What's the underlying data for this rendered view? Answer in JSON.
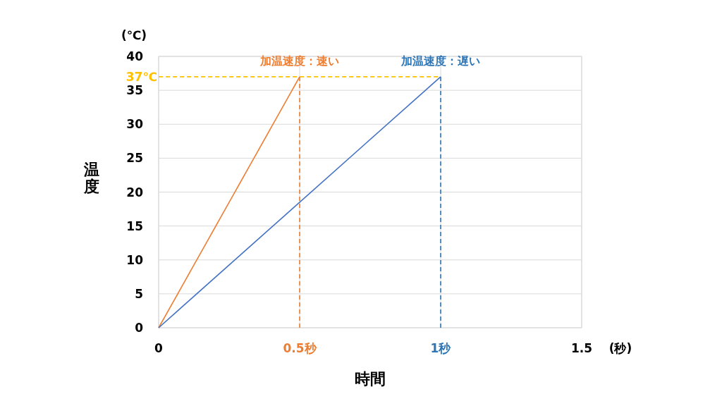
{
  "chart_data": {
    "type": "line",
    "xlabel": "時間",
    "ylabel": "温度",
    "series": [
      {
        "color": "#ed7d31",
        "x": [
          0,
          0.5
        ],
        "values": [
          0,
          37
        ]
      },
      {
        "color": "#4472c4",
        "x": [
          0,
          1
        ],
        "values": [
          0,
          37
        ]
      }
    ],
    "xlim": [
      0,
      1.5
    ],
    "ylim": [
      0,
      40
    ],
    "xticks": [
      0,
      {
        "value": 0.5,
        "label": "0.5秒"
      },
      {
        "value": 1,
        "label": "1秒"
      },
      1.5
    ],
    "yticks": [
      0,
      5,
      10,
      15,
      20,
      25,
      30,
      35,
      40
    ],
    "ref_lines": [
      {
        "axis": "y",
        "value": 37,
        "label": "37℃",
        "color": "#ffc000",
        "line_style": "dashed"
      },
      {
        "axis": "x",
        "value": 0.5,
        "color": "#ed7d31",
        "line_style": "dashed"
      },
      {
        "axis": "x",
        "value": 1,
        "color": "#2e75b6",
        "line_style": "dashed"
      }
    ],
    "annotations": [
      "(℃)",
      "(秒)",
      {
        "text": "加温速度：速い",
        "x": 0.5,
        "y": 37
      },
      {
        "text": "加温速度：遅い",
        "x": 1,
        "y": 37
      }
    ],
    "grid": true
  }
}
